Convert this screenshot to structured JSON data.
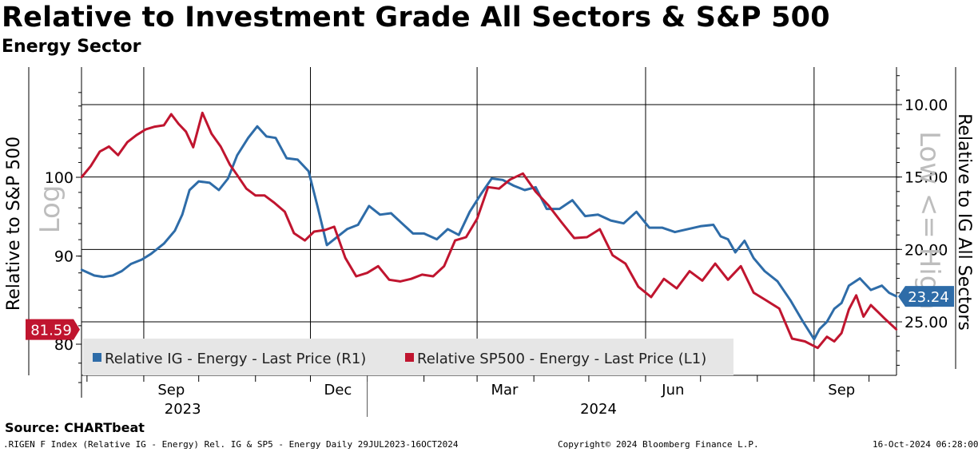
{
  "header": {
    "title": "Relative to Investment Grade All Sectors & S&P 500",
    "subtitle": "Energy Sector"
  },
  "footer": {
    "source": "Source: CHARTbeat",
    "ticker": ".RIGEN F Index (Relative IG - Energy) Rel. IG & SP5 - Energy  Daily 29JUL2023-16OCT2024",
    "copyright": "Copyright© 2024 Bloomberg Finance L.P.",
    "timestamp": "16-Oct-2024 06:28:00"
  },
  "chart_data": {
    "type": "line",
    "x_range": [
      "2023-07-29",
      "2024-10-16"
    ],
    "month_ticks": [
      "Sep",
      "Dec",
      "Mar",
      "Jun",
      "Sep"
    ],
    "year_ticks": [
      "2023",
      "2024"
    ],
    "left_axis": {
      "label": "Relative to S&P 500",
      "scale": "log",
      "scale_label": "Log",
      "ticks": [
        "100",
        "90",
        "80"
      ],
      "last_value_label": "81.59",
      "last_value_color": "#c0152f"
    },
    "right_axis": {
      "label": "Relative to IG All Sectors",
      "inverted": true,
      "note": "Low <= High",
      "ticks": [
        "10.00",
        "15.00",
        "20.00",
        "25.00"
      ],
      "last_value_label": "23.24",
      "last_value_color": "#2e6ca8"
    },
    "series": [
      {
        "name": "Relative IG - Energy - Last Price (R1)",
        "axis": "right",
        "color": "#2e6ca8",
        "x": [
          "2023-07-29",
          "2023-08-05",
          "2023-08-10",
          "2023-08-15",
          "2023-08-20",
          "2023-08-25",
          "2023-08-31",
          "2023-09-05",
          "2023-09-12",
          "2023-09-18",
          "2023-09-22",
          "2023-09-26",
          "2023-10-01",
          "2023-10-07",
          "2023-10-12",
          "2023-10-17",
          "2023-10-22",
          "2023-10-28",
          "2023-11-02",
          "2023-11-07",
          "2023-11-12",
          "2023-11-18",
          "2023-11-24",
          "2023-11-30",
          "2023-12-05",
          "2023-12-10",
          "2023-12-15",
          "2023-12-21",
          "2023-12-27",
          "2024-01-02",
          "2024-01-08",
          "2024-01-14",
          "2024-01-20",
          "2024-01-26",
          "2024-02-01",
          "2024-02-08",
          "2024-02-14",
          "2024-02-20",
          "2024-02-26",
          "2024-03-03",
          "2024-03-09",
          "2024-03-15",
          "2024-03-21",
          "2024-03-27",
          "2024-04-02",
          "2024-04-08",
          "2024-04-15",
          "2024-04-22",
          "2024-04-29",
          "2024-05-06",
          "2024-05-13",
          "2024-05-20",
          "2024-05-27",
          "2024-06-03",
          "2024-06-10",
          "2024-06-17",
          "2024-06-24",
          "2024-07-01",
          "2024-07-08",
          "2024-07-12",
          "2024-07-16",
          "2024-07-20",
          "2024-07-25",
          "2024-07-30",
          "2024-08-05",
          "2024-08-12",
          "2024-08-19",
          "2024-08-26",
          "2024-09-01",
          "2024-09-04",
          "2024-09-08",
          "2024-09-12",
          "2024-09-16",
          "2024-09-20",
          "2024-09-26",
          "2024-10-02",
          "2024-10-08",
          "2024-10-12",
          "2024-10-16"
        ],
        "values": [
          21.4,
          21.8,
          21.9,
          21.8,
          21.5,
          21.0,
          20.7,
          20.3,
          19.6,
          18.7,
          17.6,
          15.9,
          15.3,
          15.4,
          15.9,
          15.1,
          13.5,
          12.3,
          11.5,
          12.2,
          12.3,
          13.7,
          13.8,
          14.6,
          17.1,
          19.7,
          19.2,
          18.6,
          18.3,
          17.0,
          17.6,
          17.5,
          18.2,
          18.9,
          18.9,
          19.3,
          18.6,
          19.0,
          17.4,
          16.2,
          15.1,
          15.2,
          15.6,
          15.9,
          15.7,
          17.2,
          17.2,
          16.6,
          17.7,
          17.6,
          18.0,
          18.2,
          17.4,
          18.5,
          18.5,
          18.8,
          18.6,
          18.4,
          18.3,
          19.1,
          19.3,
          20.2,
          19.4,
          20.6,
          21.5,
          22.2,
          23.5,
          25.0,
          26.2,
          25.5,
          25.0,
          24.1,
          23.7,
          22.5,
          22.0,
          22.8,
          22.5,
          23.0,
          23.24
        ]
      },
      {
        "name": "Relative SP500 - Energy - Last Price (L1)",
        "axis": "left",
        "color": "#c0152f",
        "x": [
          "2023-07-29",
          "2023-08-03",
          "2023-08-08",
          "2023-08-13",
          "2023-08-18",
          "2023-08-23",
          "2023-08-28",
          "2023-09-02",
          "2023-09-07",
          "2023-09-12",
          "2023-09-16",
          "2023-09-20",
          "2023-09-24",
          "2023-09-28",
          "2023-10-03",
          "2023-10-08",
          "2023-10-13",
          "2023-10-18",
          "2023-10-22",
          "2023-10-27",
          "2023-11-01",
          "2023-11-06",
          "2023-11-11",
          "2023-11-17",
          "2023-11-22",
          "2023-11-28",
          "2023-12-03",
          "2023-12-09",
          "2023-12-14",
          "2023-12-20",
          "2023-12-26",
          "2024-01-01",
          "2024-01-07",
          "2024-01-13",
          "2024-01-19",
          "2024-01-25",
          "2024-01-31",
          "2024-02-06",
          "2024-02-12",
          "2024-02-18",
          "2024-02-24",
          "2024-03-01",
          "2024-03-07",
          "2024-03-13",
          "2024-03-19",
          "2024-03-26",
          "2024-04-02",
          "2024-04-09",
          "2024-04-16",
          "2024-04-23",
          "2024-04-30",
          "2024-05-07",
          "2024-05-14",
          "2024-05-21",
          "2024-05-28",
          "2024-06-04",
          "2024-06-11",
          "2024-06-18",
          "2024-06-25",
          "2024-07-02",
          "2024-07-09",
          "2024-07-16",
          "2024-07-23",
          "2024-07-30",
          "2024-08-06",
          "2024-08-13",
          "2024-08-20",
          "2024-08-27",
          "2024-09-03",
          "2024-09-08",
          "2024-09-12",
          "2024-09-16",
          "2024-09-20",
          "2024-09-24",
          "2024-09-28",
          "2024-10-02",
          "2024-10-06",
          "2024-10-10",
          "2024-10-16"
        ],
        "values": [
          100.0,
          101.5,
          103.5,
          104.2,
          103.0,
          104.8,
          105.8,
          106.6,
          107.0,
          107.2,
          108.8,
          107.4,
          106.3,
          104.1,
          109.0,
          106.0,
          104.2,
          101.7,
          100.3,
          98.5,
          97.6,
          97.6,
          96.7,
          95.5,
          92.8,
          91.9,
          93.0,
          93.2,
          93.6,
          89.8,
          87.6,
          88.0,
          88.8,
          87.2,
          87.0,
          87.3,
          87.8,
          87.6,
          88.8,
          91.9,
          92.3,
          94.6,
          98.7,
          98.5,
          99.7,
          100.5,
          98.1,
          96.3,
          94.2,
          92.2,
          92.3,
          93.3,
          90.1,
          89.1,
          86.4,
          85.2,
          87.3,
          86.2,
          88.2,
          87.1,
          89.1,
          87.2,
          88.8,
          85.7,
          84.8,
          83.9,
          80.6,
          80.3,
          79.6,
          80.8,
          80.3,
          81.2,
          83.8,
          85.4,
          83.0,
          84.3,
          83.5,
          82.7,
          81.59
        ]
      }
    ]
  }
}
